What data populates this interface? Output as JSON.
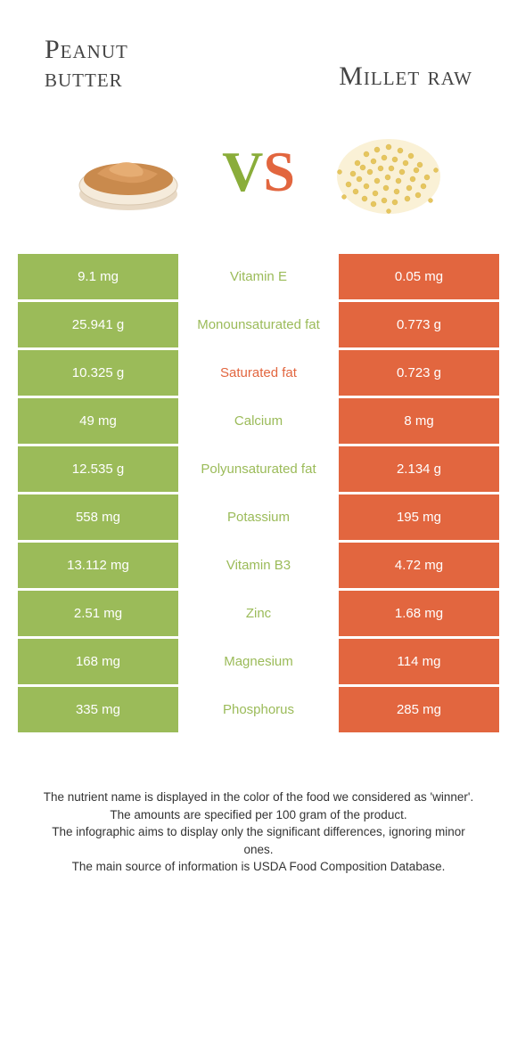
{
  "header": {
    "left_line1": "Peanut",
    "left_line2": "butter",
    "right": "Millet raw"
  },
  "vs": {
    "v": "V",
    "s": "S"
  },
  "colors": {
    "left_bg": "#9bbb59",
    "right_bg": "#e2663f",
    "left_text": "#9bbb59",
    "right_text": "#e2663f"
  },
  "rows": [
    {
      "left": "9.1 mg",
      "label": "Vitamin E",
      "right": "0.05 mg",
      "winner": "left"
    },
    {
      "left": "25.941 g",
      "label": "Monounsaturated fat",
      "right": "0.773 g",
      "winner": "left"
    },
    {
      "left": "10.325 g",
      "label": "Saturated fat",
      "right": "0.723 g",
      "winner": "right"
    },
    {
      "left": "49 mg",
      "label": "Calcium",
      "right": "8 mg",
      "winner": "left"
    },
    {
      "left": "12.535 g",
      "label": "Polyunsaturated fat",
      "right": "2.134 g",
      "winner": "left"
    },
    {
      "left": "558 mg",
      "label": "Potassium",
      "right": "195 mg",
      "winner": "left"
    },
    {
      "left": "13.112 mg",
      "label": "Vitamin B3",
      "right": "4.72 mg",
      "winner": "left"
    },
    {
      "left": "2.51 mg",
      "label": "Zinc",
      "right": "1.68 mg",
      "winner": "left"
    },
    {
      "left": "168 mg",
      "label": "Magnesium",
      "right": "114 mg",
      "winner": "left"
    },
    {
      "left": "335 mg",
      "label": "Phosphorus",
      "right": "285 mg",
      "winner": "left"
    }
  ],
  "footer": {
    "l1": "The nutrient name is displayed in the color of the food we considered as 'winner'.",
    "l2": "The amounts are specified per 100 gram of the product.",
    "l3": "The infographic aims to display only the significant differences, ignoring minor ones.",
    "l4": "The main source of information is USDA Food Composition Database."
  }
}
